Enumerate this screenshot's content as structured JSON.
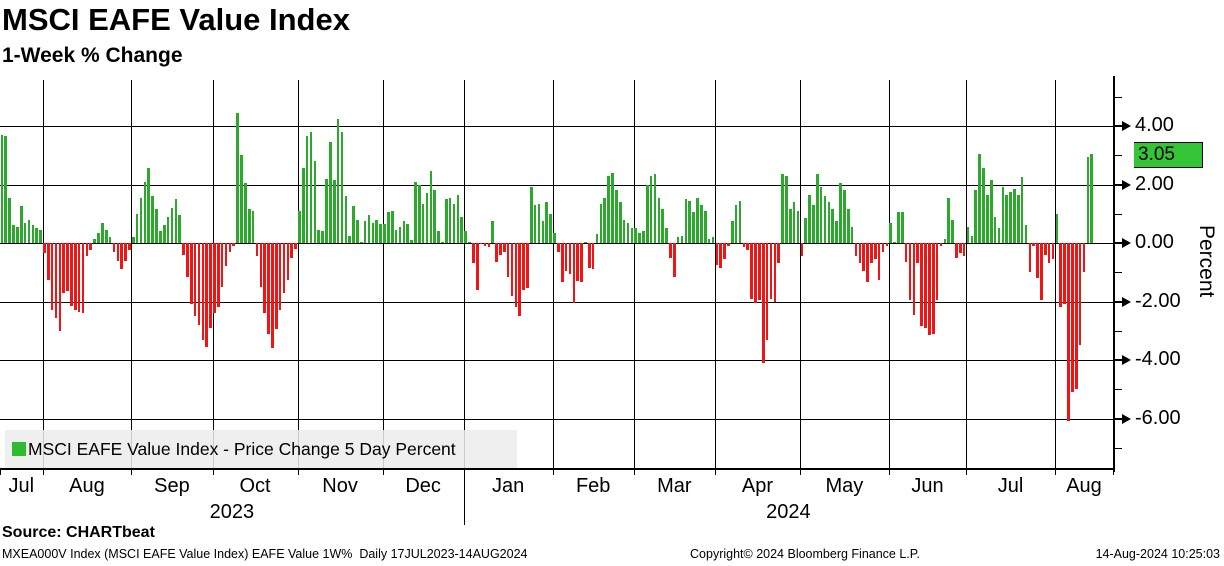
{
  "header": {
    "title": "MSCI EAFE Value Index",
    "subtitle": "1-Week % Change"
  },
  "chart_data": {
    "type": "bar",
    "title": "MSCI EAFE Value Index",
    "subtitle": "1-Week % Change",
    "ylabel": "Percent",
    "ylim": [
      -7.7,
      5.6
    ],
    "grid": true,
    "legend_position": "bottom-left",
    "series_name": "MSCI EAFE Value Index - Price Change 5 Day Percent",
    "ytick_labels": [
      "4.00",
      "2.00",
      "0.00",
      "-2.00",
      "-4.00",
      "-6.00"
    ],
    "ytick_values": [
      4,
      2,
      0,
      -2,
      -4,
      -6
    ],
    "ytick_minor_values": [
      5,
      3,
      1,
      -1,
      -3,
      -5,
      -7
    ],
    "last_value": 3.05,
    "last_value_label": "3.05",
    "colors": {
      "positive_bar": "#2ca82c",
      "negative_bar": "#f01414",
      "last_label_bg": "#35c435",
      "legend_swatch": "#2fbb2f",
      "gridline": "#000000"
    },
    "months": [
      {
        "label": "Jul",
        "bars": 11
      },
      {
        "label": "Aug",
        "bars": 23
      },
      {
        "label": "Sep",
        "bars": 21
      },
      {
        "label": "Oct",
        "bars": 22
      },
      {
        "label": "Nov",
        "bars": 22
      },
      {
        "label": "Dec",
        "bars": 21
      },
      {
        "label": "Jan",
        "bars": 23
      },
      {
        "label": "Feb",
        "bars": 21
      },
      {
        "label": "Mar",
        "bars": 21
      },
      {
        "label": "Apr",
        "bars": 22
      },
      {
        "label": "May",
        "bars": 23
      },
      {
        "label": "Jun",
        "bars": 20
      },
      {
        "label": "Jul",
        "bars": 23
      },
      {
        "label": "Aug",
        "bars": 10
      }
    ],
    "years": [
      {
        "label": "2023",
        "months": 6
      },
      {
        "label": "2024",
        "months": 8
      }
    ],
    "values": [
      3.7,
      3.65,
      1.55,
      0.6,
      0.55,
      1.25,
      0.7,
      0.8,
      0.6,
      0.5,
      0.45,
      -0.35,
      -1.25,
      -2.3,
      -2.55,
      -3.0,
      -1.7,
      -1.65,
      -2.15,
      -2.3,
      -2.35,
      -2.4,
      -0.45,
      -0.25,
      0.15,
      0.35,
      0.7,
      0.45,
      0.2,
      -0.3,
      -0.6,
      -0.9,
      -0.6,
      -0.25,
      0.2,
      1.0,
      1.55,
      2.1,
      2.55,
      1.6,
      1.15,
      0.4,
      0.6,
      0.9,
      1.2,
      1.5,
      0.95,
      -0.4,
      -1.15,
      -2.1,
      -2.5,
      -2.8,
      -3.3,
      -3.55,
      -2.9,
      -2.4,
      -2.2,
      -1.5,
      -0.8,
      -0.3,
      -0.1,
      4.45,
      3.0,
      2.05,
      1.15,
      1.1,
      -0.45,
      -1.5,
      -2.4,
      -3.1,
      -3.6,
      -2.95,
      -2.3,
      -1.7,
      -1.25,
      -0.5,
      -0.2,
      1.1,
      2.55,
      3.65,
      3.8,
      2.8,
      0.45,
      0.4,
      2.2,
      3.45,
      2.15,
      4.25,
      3.8,
      1.6,
      0.25,
      1.25,
      0.8,
      0.05,
      0.75,
      0.95,
      0.7,
      0.8,
      0.65,
      0.65,
      1.05,
      1.1,
      0.45,
      0.55,
      0.75,
      0.65,
      0.1,
      2.1,
      2.0,
      1.35,
      1.7,
      2.45,
      1.8,
      0.4,
      0.05,
      1.5,
      1.55,
      1.35,
      1.65,
      0.9,
      0.4,
      0.0,
      -0.7,
      -1.6,
      -0.05,
      -0.1,
      -0.15,
      0.75,
      -0.65,
      -0.4,
      -0.3,
      -1.15,
      -1.8,
      -2.2,
      -2.5,
      -1.6,
      -1.55,
      1.9,
      1.3,
      1.35,
      0.75,
      1.4,
      1.0,
      0.35,
      -0.3,
      -1.35,
      -0.95,
      -1.05,
      -2.05,
      -1.3,
      -1.35,
      0.05,
      -0.85,
      -0.9,
      0.3,
      1.35,
      1.55,
      2.3,
      2.4,
      1.8,
      1.4,
      0.8,
      0.7,
      0.5,
      0.5,
      0.35,
      0.4,
      2.0,
      2.3,
      2.35,
      1.55,
      1.15,
      0.5,
      -0.5,
      -1.15,
      0.2,
      0.25,
      1.5,
      1.45,
      1.05,
      1.55,
      1.3,
      1.1,
      0.15,
      0.2,
      -0.75,
      -0.85,
      -0.55,
      -0.1,
      0.75,
      1.3,
      1.45,
      -0.15,
      -0.25,
      -1.9,
      -2.05,
      -1.95,
      -4.1,
      -3.3,
      -1.9,
      -2.0,
      -0.7,
      2.35,
      2.3,
      1.15,
      1.4,
      1.1,
      -0.45,
      0.85,
      1.65,
      1.3,
      2.35,
      1.9,
      1.6,
      1.4,
      1.15,
      0.75,
      2.05,
      1.8,
      1.15,
      0.55,
      -0.45,
      -0.7,
      -0.95,
      -1.35,
      -0.7,
      -0.55,
      -1.25,
      -0.3,
      -0.1,
      0.7,
      0.05,
      1.05,
      1.05,
      -0.65,
      -1.95,
      -2.45,
      -0.7,
      -2.85,
      -2.9,
      -3.15,
      -3.1,
      -1.95,
      -0.1,
      0.15,
      1.55,
      0.8,
      -0.5,
      -0.35,
      -0.45,
      0.55,
      0.25,
      1.8,
      3.05,
      2.55,
      1.65,
      2.15,
      0.9,
      0.5,
      1.9,
      1.65,
      1.75,
      1.85,
      1.65,
      2.25,
      0.6,
      -1.0,
      -0.1,
      -1.2,
      -1.95,
      -0.4,
      -0.7,
      -0.55,
      1.0,
      -2.2,
      -2.1,
      -6.1,
      -5.1,
      -5.0,
      -3.5,
      -1.0,
      2.95,
      3.05
    ]
  },
  "footer": {
    "source": "Source: CHARTbeat",
    "description": "MXEA000V Index (MSCI EAFE Value Index) EAFE Value 1W%  Daily 17JUL2023-14AUG2024",
    "copyright": "Copyright© 2024 Bloomberg Finance L.P.",
    "timestamp": "14-Aug-2024 10:25:03"
  }
}
